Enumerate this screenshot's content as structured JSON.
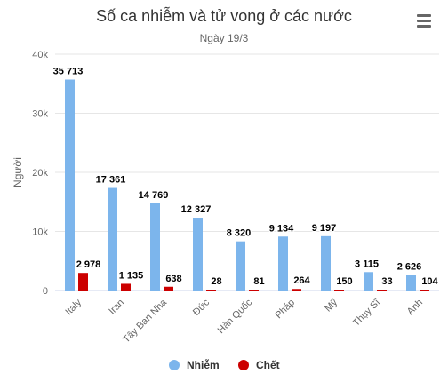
{
  "chart_data": {
    "type": "bar",
    "title": "Số ca nhiễm và tử vong ở các nước",
    "subtitle": "Ngày 19/3",
    "ylabel": "Người",
    "xlabel": "",
    "ylim": [
      0,
      40000
    ],
    "yticks": [
      {
        "value": 0,
        "label": "0"
      },
      {
        "value": 10000,
        "label": "10k"
      },
      {
        "value": 20000,
        "label": "20k"
      },
      {
        "value": 30000,
        "label": "30k"
      },
      {
        "value": 40000,
        "label": "40k"
      }
    ],
    "grid": true,
    "legend_position": "bottom-center",
    "categories": [
      "Italy",
      "Iran",
      "Tây Ban Nha",
      "Đức",
      "Hàn Quốc",
      "Pháp",
      "Mỹ",
      "Thụy Sĩ",
      "Anh"
    ],
    "series": [
      {
        "name": "Nhiễm",
        "color": "#7cb5ec",
        "values": [
          35713,
          17361,
          14769,
          12327,
          8320,
          9134,
          9197,
          3115,
          2626
        ],
        "labels": [
          "35 713",
          "17 361",
          "14 769",
          "12 327",
          "8 320",
          "9 134",
          "9 197",
          "3 115",
          "2 626"
        ]
      },
      {
        "name": "Chết",
        "color": "#cc0000",
        "values": [
          2978,
          1135,
          638,
          28,
          81,
          264,
          150,
          33,
          104
        ],
        "labels": [
          "2 978",
          "1 135",
          "638",
          "28",
          "81",
          "264",
          "150",
          "33",
          "104"
        ]
      }
    ]
  }
}
